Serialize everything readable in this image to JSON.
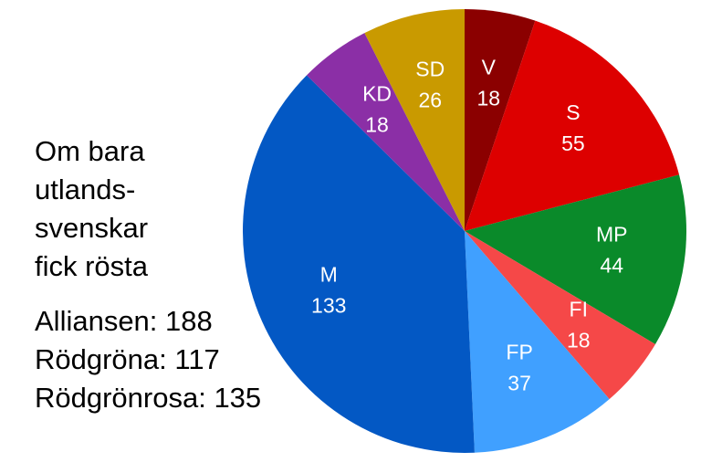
{
  "chart_data": {
    "type": "pie",
    "title_lines": [
      "Om bara",
      "utlands-",
      "svenskar",
      "fick rösta"
    ],
    "summary": [
      "Alliansen: 188",
      "Rödgröna: 117",
      "Rödgrönrosa: 135"
    ],
    "categories": [
      "V",
      "S",
      "MP",
      "FI",
      "FP",
      "M",
      "KD",
      "SD"
    ],
    "values": [
      18,
      55,
      44,
      18,
      37,
      133,
      18,
      26
    ],
    "colors": [
      "#8b0000",
      "#dd0000",
      "#0a8a2a",
      "#f54848",
      "#40a0ff",
      "#0358c4",
      "#8b2fa6",
      "#c99a00"
    ],
    "start_angle": 0,
    "direction": "clockwise"
  }
}
